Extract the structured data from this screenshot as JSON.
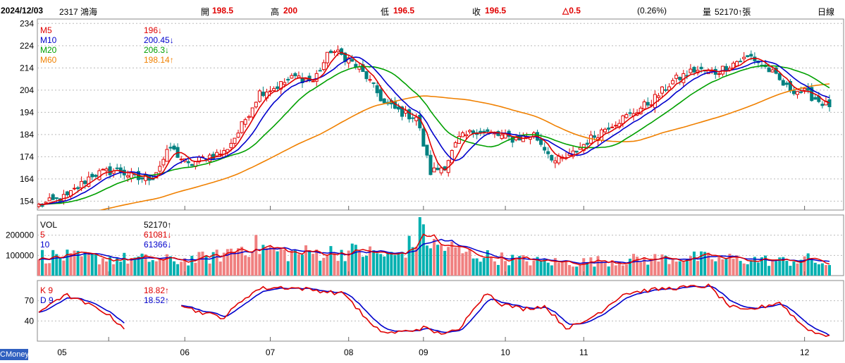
{
  "header": {
    "date": "2024/12/03",
    "stock": "2317 鴻海",
    "open_label": "開",
    "open": "198.5",
    "high_label": "高",
    "high": "200",
    "low_label": "低",
    "low": "196.5",
    "close_label": "收",
    "close": "196.5",
    "change": "△0.5",
    "change_pct": "(0.26%)",
    "volume_label": "量",
    "volume": "52170↑張",
    "period": "日線"
  },
  "watermark": "CMoney",
  "colors": {
    "ma5": "#e00000",
    "ma10": "#0000cc",
    "ma20": "#00a000",
    "ma60": "#f08000",
    "up": "#e00000",
    "down": "#008080",
    "vol_up": "#f08080",
    "vol_down": "#00b0b0",
    "k": "#e00000",
    "d": "#0000cc"
  },
  "chart_data": [
    {
      "type": "candlestick",
      "ylim": [
        150,
        236
      ],
      "yticks": [
        "234",
        "224",
        "214",
        "204",
        "194",
        "184",
        "174",
        "164",
        "154"
      ],
      "legend": [
        {
          "name": "M5",
          "value": "196↓"
        },
        {
          "name": "M10",
          "value": "200.45↓"
        },
        {
          "name": "M20",
          "value": "206.3↓"
        },
        {
          "name": "M60",
          "value": "198.14↑"
        }
      ],
      "ma60_start": 146,
      "close_anchors": [
        [
          0,
          152
        ],
        [
          8,
          156
        ],
        [
          15,
          166
        ],
        [
          22,
          168
        ],
        [
          28,
          164
        ],
        [
          32,
          165
        ],
        [
          37,
          178
        ],
        [
          42,
          170
        ],
        [
          47,
          174
        ],
        [
          52,
          176
        ],
        [
          56,
          185
        ],
        [
          62,
          203
        ],
        [
          66,
          205
        ],
        [
          72,
          210
        ],
        [
          77,
          208
        ],
        [
          82,
          222
        ],
        [
          87,
          218
        ],
        [
          92,
          210
        ],
        [
          97,
          198
        ],
        [
          103,
          193
        ],
        [
          106,
          192
        ],
        [
          110,
          167
        ],
        [
          114,
          170
        ],
        [
          118,
          182
        ],
        [
          123,
          186
        ],
        [
          128,
          184
        ],
        [
          133,
          182
        ],
        [
          139,
          184
        ],
        [
          145,
          172
        ],
        [
          149,
          174
        ],
        [
          154,
          181
        ],
        [
          160,
          188
        ],
        [
          166,
          193
        ],
        [
          172,
          199
        ],
        [
          178,
          208
        ],
        [
          184,
          213
        ],
        [
          190,
          212
        ],
        [
          196,
          217
        ],
        [
          200,
          219
        ],
        [
          205,
          213
        ],
        [
          210,
          205
        ],
        [
          215,
          203
        ],
        [
          222,
          196.5
        ]
      ]
    },
    {
      "type": "bar",
      "ylim": [
        0,
        300000
      ],
      "yticks": [
        "200000",
        "100000"
      ],
      "legend": [
        {
          "name": "VOL",
          "value": "52170↑"
        },
        {
          "name": "5",
          "value": "61081↓"
        },
        {
          "name": "10",
          "value": "61366↓"
        }
      ],
      "vol_anchors": [
        [
          0,
          100000
        ],
        [
          10,
          90000
        ],
        [
          20,
          85000
        ],
        [
          30,
          80000
        ],
        [
          40,
          75000
        ],
        [
          50,
          95000
        ],
        [
          56,
          140000
        ],
        [
          60,
          150000
        ],
        [
          70,
          110000
        ],
        [
          80,
          115000
        ],
        [
          90,
          120000
        ],
        [
          100,
          95000
        ],
        [
          105,
          160000
        ],
        [
          108,
          240000
        ],
        [
          110,
          150000
        ],
        [
          115,
          140000
        ],
        [
          120,
          110000
        ],
        [
          130,
          85000
        ],
        [
          140,
          70000
        ],
        [
          150,
          65000
        ],
        [
          160,
          75000
        ],
        [
          170,
          80000
        ],
        [
          180,
          90000
        ],
        [
          190,
          85000
        ],
        [
          200,
          80000
        ],
        [
          210,
          70000
        ],
        [
          215,
          85000
        ],
        [
          222,
          52170
        ]
      ]
    },
    {
      "type": "line",
      "ylim": [
        10,
        100
      ],
      "yticks": [
        "70",
        "40"
      ],
      "legend": [
        {
          "name": "K 9",
          "value": "18.82↑"
        },
        {
          "name": "D 9",
          "value": "18.52↑"
        }
      ],
      "k_anchors": [
        [
          0,
          50
        ],
        [
          4,
          70
        ],
        [
          8,
          78
        ],
        [
          18,
          55
        ],
        [
          24,
          30
        ],
        [
          28,
          40
        ],
        [
          32,
          50
        ],
        [
          38,
          70
        ],
        [
          44,
          55
        ],
        [
          52,
          45
        ],
        [
          58,
          75
        ],
        [
          62,
          88
        ],
        [
          68,
          90
        ],
        [
          74,
          88
        ],
        [
          80,
          84
        ],
        [
          86,
          80
        ],
        [
          90,
          55
        ],
        [
          94,
          30
        ],
        [
          98,
          22
        ],
        [
          104,
          25
        ],
        [
          108,
          30
        ],
        [
          112,
          22
        ],
        [
          118,
          25
        ],
        [
          122,
          60
        ],
        [
          126,
          82
        ],
        [
          130,
          65
        ],
        [
          136,
          58
        ],
        [
          142,
          62
        ],
        [
          148,
          30
        ],
        [
          152,
          35
        ],
        [
          158,
          55
        ],
        [
          164,
          80
        ],
        [
          170,
          85
        ],
        [
          176,
          88
        ],
        [
          182,
          90
        ],
        [
          188,
          92
        ],
        [
          194,
          62
        ],
        [
          198,
          55
        ],
        [
          204,
          62
        ],
        [
          208,
          68
        ],
        [
          214,
          35
        ],
        [
          218,
          22
        ],
        [
          222,
          18.82
        ]
      ]
    }
  ],
  "xlabels": [
    "05",
    "06",
    "07",
    "08",
    "09",
    "10",
    "11",
    "12"
  ]
}
